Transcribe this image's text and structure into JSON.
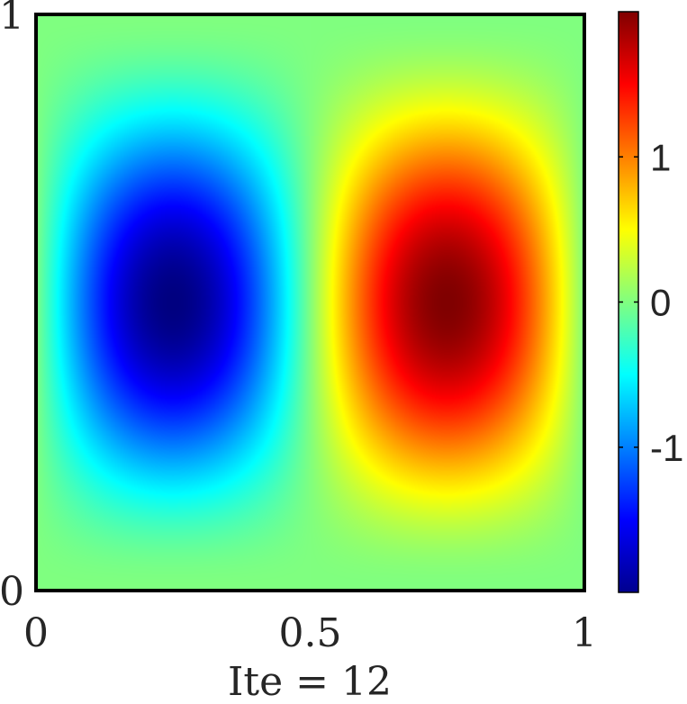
{
  "chart_data": {
    "type": "heatmap",
    "title": "",
    "xlabel": "Ite = 12",
    "ylabel": "",
    "xlim": [
      0,
      1
    ],
    "ylim": [
      0,
      1
    ],
    "x_ticks": [
      {
        "value": 0,
        "label": "0"
      },
      {
        "value": 0.5,
        "label": "0.5"
      },
      {
        "value": 1,
        "label": "1"
      }
    ],
    "y_ticks": [
      {
        "value": 0,
        "label": "0"
      },
      {
        "value": 1,
        "label": "1"
      }
    ],
    "colorbar": {
      "colormap": "jet",
      "range": [
        -2,
        2
      ],
      "ticks": [
        {
          "value": -1,
          "label": "-1"
        },
        {
          "value": 0,
          "label": "0"
        },
        {
          "value": 1,
          "label": "1"
        }
      ]
    },
    "field_features": [
      {
        "name": "minimum",
        "x": 0.25,
        "y": 0.5,
        "value": -2
      },
      {
        "name": "maximum",
        "x": 0.75,
        "y": 0.5,
        "value": 2
      }
    ],
    "grid": false,
    "legend": "none"
  }
}
